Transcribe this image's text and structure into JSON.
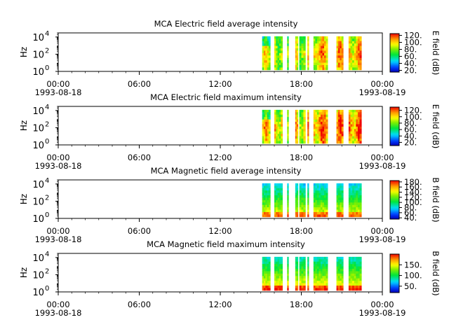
{
  "chart_data": [
    {
      "type": "heatmap",
      "title": "MCA  Electric field average intensity",
      "ylabel": "Hz",
      "yscale": "log",
      "ylim": [
        1,
        30000
      ],
      "y_ticks": [
        {
          "base": "10",
          "exp": "0"
        },
        {
          "base": "10",
          "exp": "2"
        },
        {
          "base": "10",
          "exp": "4"
        }
      ],
      "x_ticks": [
        {
          "time": "00:00",
          "date": "1993-08-18"
        },
        {
          "time": "06:00",
          "date": ""
        },
        {
          "time": "12:00",
          "date": ""
        },
        {
          "time": "18:00",
          "date": ""
        },
        {
          "time": "00:00",
          "date": "1993-08-19"
        }
      ],
      "xlim_hours": [
        0,
        24
      ],
      "data_segments_hours": [
        [
          15.1,
          15.7
        ],
        [
          16.0,
          16.6
        ],
        [
          16.95,
          17.05
        ],
        [
          17.55,
          17.75
        ],
        [
          17.85,
          18.3
        ],
        [
          18.45,
          18.55
        ],
        [
          18.9,
          19.95
        ],
        [
          20.6,
          21.1
        ],
        [
          21.5,
          22.45
        ]
      ],
      "colorbar": {
        "label": "E field (dB)",
        "range": [
          15,
          125
        ],
        "ticks": [
          "20.",
          "40.",
          "60.",
          "80.",
          "100.",
          "120."
        ],
        "tick_values": [
          20,
          40,
          60,
          80,
          100,
          120
        ]
      }
    },
    {
      "type": "heatmap",
      "title": "MCA  Electric field maximum intensity",
      "ylabel": "Hz",
      "yscale": "log",
      "ylim": [
        1,
        30000
      ],
      "y_ticks": [
        {
          "base": "10",
          "exp": "0"
        },
        {
          "base": "10",
          "exp": "2"
        },
        {
          "base": "10",
          "exp": "4"
        }
      ],
      "x_ticks": [
        {
          "time": "00:00",
          "date": "1993-08-18"
        },
        {
          "time": "06:00",
          "date": ""
        },
        {
          "time": "12:00",
          "date": ""
        },
        {
          "time": "18:00",
          "date": ""
        },
        {
          "time": "00:00",
          "date": "1993-08-19"
        }
      ],
      "xlim_hours": [
        0,
        24
      ],
      "data_segments_hours": [
        [
          15.1,
          15.7
        ],
        [
          16.0,
          16.6
        ],
        [
          16.95,
          17.05
        ],
        [
          17.55,
          17.75
        ],
        [
          17.85,
          18.3
        ],
        [
          18.45,
          18.55
        ],
        [
          18.9,
          19.95
        ],
        [
          20.6,
          21.1
        ],
        [
          21.5,
          22.45
        ]
      ],
      "colorbar": {
        "label": "E field (dB)",
        "range": [
          10,
          130
        ],
        "ticks": [
          "20.",
          "40.",
          "60.",
          "80.",
          "100.",
          "120."
        ],
        "tick_values": [
          20,
          40,
          60,
          80,
          100,
          120
        ]
      }
    },
    {
      "type": "heatmap",
      "title": "MCA  Magnetic field average intensity",
      "ylabel": "Hz",
      "yscale": "log",
      "ylim": [
        1,
        30000
      ],
      "y_ticks": [
        {
          "base": "10",
          "exp": "0"
        },
        {
          "base": "10",
          "exp": "2"
        },
        {
          "base": "10",
          "exp": "4"
        }
      ],
      "x_ticks": [
        {
          "time": "00:00",
          "date": "1993-08-18"
        },
        {
          "time": "06:00",
          "date": ""
        },
        {
          "time": "12:00",
          "date": ""
        },
        {
          "time": "18:00",
          "date": ""
        },
        {
          "time": "00:00",
          "date": "1993-08-19"
        }
      ],
      "xlim_hours": [
        0,
        24
      ],
      "data_segments_hours": [
        [
          15.1,
          15.7
        ],
        [
          16.0,
          16.6
        ],
        [
          16.95,
          17.05
        ],
        [
          17.55,
          17.75
        ],
        [
          17.85,
          18.3
        ],
        [
          18.45,
          18.55
        ],
        [
          18.9,
          19.95
        ],
        [
          20.6,
          21.1
        ],
        [
          21.5,
          22.45
        ]
      ],
      "colorbar": {
        "label": "B field (dB)",
        "range": [
          35,
          185
        ],
        "ticks": [
          "40.",
          "60.",
          "80.",
          "100.",
          "120.",
          "140.",
          "160.",
          "180."
        ],
        "tick_values": [
          40,
          60,
          80,
          100,
          120,
          140,
          160,
          180
        ]
      }
    },
    {
      "type": "heatmap",
      "title": "MCA  Magnetic field maximum intensity",
      "ylabel": "Hz",
      "yscale": "log",
      "ylim": [
        1,
        30000
      ],
      "y_ticks": [
        {
          "base": "10",
          "exp": "0"
        },
        {
          "base": "10",
          "exp": "2"
        },
        {
          "base": "10",
          "exp": "4"
        }
      ],
      "x_ticks": [
        {
          "time": "00:00",
          "date": "1993-08-18"
        },
        {
          "time": "06:00",
          "date": ""
        },
        {
          "time": "12:00",
          "date": ""
        },
        {
          "time": "18:00",
          "date": ""
        },
        {
          "time": "00:00",
          "date": "1993-08-19"
        }
      ],
      "xlim_hours": [
        0,
        24
      ],
      "data_segments_hours": [
        [
          15.1,
          15.7
        ],
        [
          16.0,
          16.6
        ],
        [
          16.95,
          17.05
        ],
        [
          17.55,
          17.75
        ],
        [
          17.85,
          18.3
        ],
        [
          18.45,
          18.55
        ],
        [
          18.9,
          19.95
        ],
        [
          20.6,
          21.1
        ],
        [
          21.5,
          22.45
        ]
      ],
      "colorbar": {
        "label": "B field (dB)",
        "range": [
          20,
          200
        ],
        "ticks": [
          "50.",
          "100.",
          "150."
        ],
        "tick_values": [
          50,
          100,
          150
        ]
      }
    }
  ]
}
